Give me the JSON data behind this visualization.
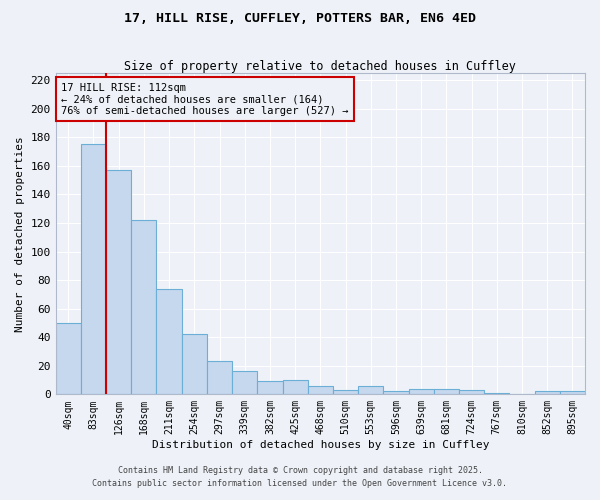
{
  "title_line1": "17, HILL RISE, CUFFLEY, POTTERS BAR, EN6 4ED",
  "title_line2": "Size of property relative to detached houses in Cuffley",
  "xlabel": "Distribution of detached houses by size in Cuffley",
  "ylabel": "Number of detached properties",
  "bins": [
    "40sqm",
    "83sqm",
    "126sqm",
    "168sqm",
    "211sqm",
    "254sqm",
    "297sqm",
    "339sqm",
    "382sqm",
    "425sqm",
    "468sqm",
    "510sqm",
    "553sqm",
    "596sqm",
    "639sqm",
    "681sqm",
    "724sqm",
    "767sqm",
    "810sqm",
    "852sqm",
    "895sqm"
  ],
  "values": [
    50,
    175,
    157,
    122,
    74,
    42,
    23,
    16,
    9,
    10,
    6,
    3,
    6,
    2,
    4,
    4,
    3,
    1,
    0,
    2,
    2
  ],
  "bar_color": "#c5d8ee",
  "bar_edge_color": "#6baed6",
  "vline_x": 1.5,
  "vline_color": "#cc0000",
  "ylim": [
    0,
    225
  ],
  "yticks": [
    0,
    20,
    40,
    60,
    80,
    100,
    120,
    140,
    160,
    180,
    200,
    220
  ],
  "annotation_title": "17 HILL RISE: 112sqm",
  "annotation_line1": "← 24% of detached houses are smaller (164)",
  "annotation_line2": "76% of semi-detached houses are larger (527) →",
  "annotation_box_color": "#cc0000",
  "footnote1": "Contains HM Land Registry data © Crown copyright and database right 2025.",
  "footnote2": "Contains public sector information licensed under the Open Government Licence v3.0.",
  "bg_color": "#eef2f8",
  "grid_color": "#ffffff",
  "font_family": "DejaVu Sans Mono"
}
